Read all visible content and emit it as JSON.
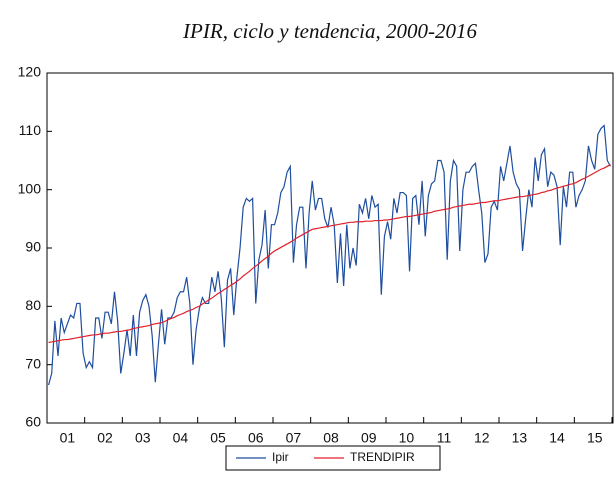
{
  "chart_data": {
    "type": "line",
    "title": "IPIR, ciclo y tendencia, 2000-2016",
    "categories": [
      null,
      null,
      null,
      null,
      null,
      null,
      "01",
      null,
      null,
      null,
      null,
      null,
      null,
      null,
      null,
      null,
      null,
      null,
      "02",
      null,
      null,
      null,
      null,
      null,
      null,
      null,
      null,
      null,
      null,
      null,
      "03",
      null,
      null,
      null,
      null,
      null,
      null,
      null,
      null,
      null,
      null,
      null,
      "04",
      null,
      null,
      null,
      null,
      null,
      null,
      null,
      null,
      null,
      null,
      null,
      "05",
      null,
      null,
      null,
      null,
      null,
      null,
      null,
      null,
      null,
      null,
      null,
      "06",
      null,
      null,
      null,
      null,
      null,
      null,
      null,
      null,
      null,
      null,
      null,
      "07",
      null,
      null,
      null,
      null,
      null,
      null,
      null,
      null,
      null,
      null,
      null,
      "08",
      null,
      null,
      null,
      null,
      null,
      null,
      null,
      null,
      null,
      null,
      null,
      "09",
      null,
      null,
      null,
      null,
      null,
      null,
      null,
      null,
      null,
      null,
      null,
      "10",
      null,
      null,
      null,
      null,
      null,
      null,
      null,
      null,
      null,
      null,
      null,
      "11",
      null,
      null,
      null,
      null,
      null,
      null,
      null,
      null,
      null,
      null,
      null,
      "12",
      null,
      null,
      null,
      null,
      null,
      null,
      null,
      null,
      null,
      null,
      null,
      "13",
      null,
      null,
      null,
      null,
      null,
      null,
      null,
      null,
      null,
      null,
      null,
      "14",
      null,
      null,
      null,
      null,
      null,
      null,
      null,
      null,
      null,
      null,
      null,
      "15",
      null,
      null,
      null,
      null,
      null
    ],
    "series": [
      {
        "name": "Ipir",
        "color": "#1f4e9e",
        "values": [
          66.5,
          68.5,
          77.5,
          71.5,
          78,
          75.5,
          77,
          78.5,
          78,
          80.5,
          80.5,
          72,
          69.5,
          70.5,
          69.5,
          78,
          78,
          74.5,
          79,
          79,
          77,
          82.5,
          77.5,
          68.5,
          72,
          76,
          71.5,
          78.5,
          71.5,
          79,
          81,
          82,
          80,
          75,
          67,
          73.5,
          79.5,
          73.5,
          78,
          78,
          79,
          81.5,
          82.5,
          82.5,
          85,
          80.5,
          70,
          76,
          79.5,
          81.5,
          80.5,
          80.5,
          85,
          82.5,
          86,
          81.5,
          73,
          84.5,
          86.5,
          78.5,
          85,
          90,
          97,
          98.5,
          98,
          98.5,
          80.5,
          88,
          90.5,
          96.5,
          86.5,
          94,
          94,
          96,
          99.5,
          100.5,
          103,
          104,
          87.5,
          94,
          97,
          97,
          86.5,
          96,
          101.5,
          96.5,
          98.5,
          98.5,
          95,
          93.5,
          97,
          94,
          84,
          92.5,
          83.5,
          94,
          86.5,
          90,
          87,
          97.5,
          96,
          98.5,
          95,
          99,
          97,
          97.5,
          82,
          92,
          94.5,
          91.5,
          98.5,
          96,
          99.5,
          99.5,
          99,
          86,
          98.5,
          99,
          94,
          101.5,
          92,
          99,
          101,
          101.5,
          105,
          105,
          103,
          88,
          101.5,
          105,
          104,
          89.5,
          100,
          103,
          103,
          104,
          104.5,
          100,
          96,
          87.5,
          89,
          97,
          98,
          96.5,
          104,
          101.5,
          104.5,
          107.5,
          103,
          101,
          100,
          89.5,
          95,
          100,
          97,
          105.5,
          101.5,
          106,
          107,
          100.5,
          103,
          102.5,
          100.5,
          90.5,
          100.5,
          97,
          103,
          103,
          97,
          99,
          100,
          101.5,
          107.5,
          105,
          103.5,
          109.5,
          110.5,
          111,
          105,
          104
        ]
      },
      {
        "name": "TRENDIPIR",
        "color": "#e0202a",
        "values": [
          73.8,
          73.9,
          74.0,
          74.1,
          74.2,
          74.3,
          74.3,
          74.4,
          74.5,
          74.6,
          74.7,
          74.8,
          74.9,
          75.0,
          75.1,
          75.1,
          75.2,
          75.3,
          75.4,
          75.4,
          75.5,
          75.6,
          75.7,
          75.7,
          75.8,
          75.9,
          76.0,
          76.2,
          76.3,
          76.4,
          76.5,
          76.6,
          76.7,
          76.9,
          77.0,
          77.1,
          77.2,
          77.4,
          77.7,
          77.9,
          78.1,
          78.4,
          78.6,
          78.8,
          79.1,
          79.3,
          79.5,
          79.8,
          80.0,
          80.4,
          80.7,
          81.1,
          81.4,
          81.8,
          82.2,
          82.5,
          82.9,
          83.2,
          83.6,
          83.9,
          84.3,
          84.7,
          85.2,
          85.6,
          86.0,
          86.5,
          86.9,
          87.3,
          87.8,
          88.2,
          88.6,
          89.1,
          89.5,
          89.8,
          90.1,
          90.4,
          90.7,
          91.0,
          91.3,
          91.7,
          92.0,
          92.3,
          92.6,
          92.9,
          93.2,
          93.3,
          93.4,
          93.5,
          93.6,
          93.7,
          93.8,
          93.9,
          94.0,
          94.1,
          94.2,
          94.3,
          94.4,
          94.4,
          94.5,
          94.5,
          94.5,
          94.6,
          94.6,
          94.6,
          94.7,
          94.7,
          94.7,
          94.8,
          94.8,
          94.9,
          95.0,
          95.1,
          95.2,
          95.3,
          95.4,
          95.4,
          95.5,
          95.6,
          95.7,
          95.8,
          95.9,
          96.0,
          96.1,
          96.3,
          96.4,
          96.5,
          96.6,
          96.7,
          96.8,
          97.0,
          97.1,
          97.2,
          97.3,
          97.4,
          97.5,
          97.5,
          97.6,
          97.7,
          97.8,
          97.8,
          97.9,
          98.0,
          98.1,
          98.1,
          98.2,
          98.3,
          98.4,
          98.5,
          98.6,
          98.7,
          98.8,
          98.8,
          98.9,
          99.0,
          99.1,
          99.2,
          99.3,
          99.5,
          99.6,
          99.8,
          99.9,
          100.1,
          100.3,
          100.4,
          100.6,
          100.7,
          100.9,
          101.0,
          101.2,
          101.5,
          101.8,
          102.0,
          102.3,
          102.6,
          102.9,
          103.2,
          103.5,
          103.7,
          104.0,
          104.3
        ]
      }
    ],
    "ylim": [
      60,
      120
    ],
    "yticks": [
      60,
      70,
      80,
      90,
      100,
      110,
      120
    ],
    "grid": false
  }
}
